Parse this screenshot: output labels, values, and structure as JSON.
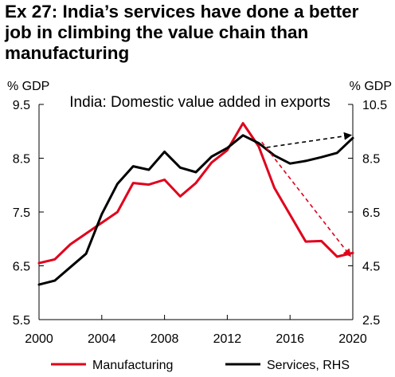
{
  "header": {
    "title_line1": "Ex 27: India’s services have done a better",
    "title_line2": "job in climbing the value chain than",
    "title_line3": "manufacturing"
  },
  "chart_data": {
    "type": "line",
    "title": "India: Domestic value added in exports",
    "left_axis": {
      "label": "% GDP",
      "range": [
        5.5,
        9.5
      ],
      "ticks": [
        "9.5",
        "8.5",
        "7.5",
        "6.5",
        "5.5"
      ]
    },
    "right_axis": {
      "label": "% GDP",
      "range": [
        2.5,
        10.5
      ],
      "ticks": [
        "10.5",
        "8.5",
        "6.5",
        "4.5",
        "2.5"
      ]
    },
    "x_ticks": [
      "2000",
      "2004",
      "2008",
      "2012",
      "2016",
      "2020"
    ],
    "x_range": [
      2000,
      2020
    ],
    "series": [
      {
        "name": "Manufacturing",
        "axis": "left",
        "color": "#e0001b",
        "x": [
          2000,
          2001,
          2002,
          2003,
          2004,
          2005,
          2006,
          2007,
          2008,
          2009,
          2010,
          2011,
          2012,
          2013,
          2014,
          2015,
          2016,
          2017,
          2018,
          2019,
          2020
        ],
        "y": [
          6.55,
          6.62,
          6.9,
          7.1,
          7.3,
          7.5,
          8.04,
          8.01,
          8.1,
          7.79,
          8.04,
          8.42,
          8.65,
          9.15,
          8.72,
          7.95,
          7.45,
          6.95,
          6.96,
          6.67,
          6.74
        ]
      },
      {
        "name": "Services, RHS",
        "axis": "right",
        "color": "#000000",
        "x": [
          2000,
          2001,
          2002,
          2003,
          2004,
          2005,
          2006,
          2007,
          2008,
          2009,
          2010,
          2011,
          2012,
          2013,
          2014,
          2015,
          2016,
          2017,
          2018,
          2019,
          2020
        ],
        "y": [
          3.8,
          3.95,
          4.45,
          4.95,
          6.42,
          7.55,
          8.2,
          8.07,
          8.74,
          8.15,
          7.98,
          8.56,
          8.88,
          9.35,
          9.06,
          8.6,
          8.3,
          8.4,
          8.54,
          8.7,
          9.25
        ]
      }
    ],
    "arrows": [
      {
        "color": "#e0001b",
        "from": [
          2014.2,
          8.8
        ],
        "to": [
          2019.8,
          6.7
        ],
        "axis": "left"
      },
      {
        "color": "#000000",
        "from": [
          2014.5,
          8.9
        ],
        "to": [
          2019.8,
          9.35
        ],
        "axis": "right"
      }
    ],
    "legend_placement": "bottom",
    "grid": false
  }
}
